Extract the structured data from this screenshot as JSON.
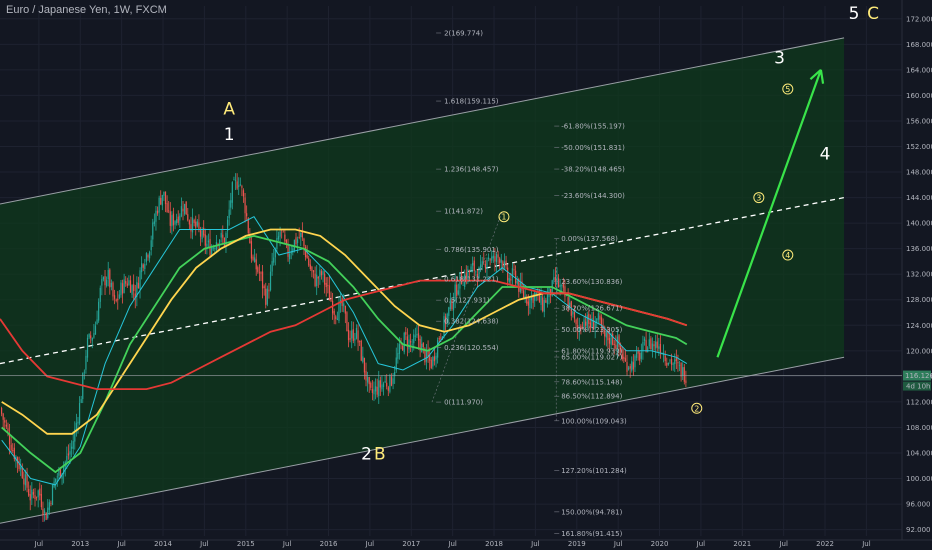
{
  "title": "Euro / Japanese Yen, 1W, FXCM",
  "colors": {
    "background": "#131722",
    "up": "#26a69a",
    "down": "#ef5350",
    "channel_fill": "#0f3a1c",
    "channel_line": "#9aa0a6",
    "midline": "#ffffff",
    "ma_cyan": "#26c6da",
    "ma_green": "#43d15a",
    "ma_yellow": "#ffd54f",
    "ma_red": "#e53935",
    "arrow": "#39e34a",
    "wave_white": "#ffffff",
    "wave_yellow": "#ffeb7a",
    "fib_text": "#b2b5be"
  },
  "price_labels": {
    "current": "116.126",
    "countdown": "4d 10h"
  },
  "chart_data": {
    "type": "candlestick",
    "symbol": "EURJPY",
    "timeframe": "1W",
    "x_ticks": [
      "Jul",
      "2013",
      "Jul",
      "2014",
      "Jul",
      "2015",
      "Jul",
      "2016",
      "Jul",
      "2017",
      "Jul",
      "2018",
      "Jul",
      "2019",
      "Jul",
      "2020",
      "Jul",
      "2021",
      "Jul",
      "2022",
      "Jul"
    ],
    "x_tick_dates": [
      2012.5,
      2013.0,
      2013.5,
      2014.0,
      2014.5,
      2015.0,
      2015.5,
      2016.0,
      2016.5,
      2017.0,
      2017.5,
      2018.0,
      2018.5,
      2019.0,
      2019.5,
      2020.0,
      2020.5,
      2021.0,
      2021.5,
      2022.0,
      2022.5
    ],
    "y_ticks": [
      "172.000",
      "168.000",
      "164.000",
      "160.000",
      "156.000",
      "152.000",
      "148.000",
      "144.000",
      "140.000",
      "136.000",
      "132.000",
      "128.000",
      "124.000",
      "120.000",
      "116.000",
      "112.000",
      "108.000",
      "104.000",
      "100.000",
      "96.000",
      "92.000"
    ],
    "ylim": [
      91,
      174
    ],
    "xlim": [
      2012.03,
      2022.93
    ],
    "price_path": [
      [
        2012.03,
        111
      ],
      [
        2012.1,
        108
      ],
      [
        2012.2,
        104
      ],
      [
        2012.3,
        101
      ],
      [
        2012.4,
        97
      ],
      [
        2012.5,
        98
      ],
      [
        2012.58,
        94
      ],
      [
        2012.7,
        100
      ],
      [
        2012.8,
        102
      ],
      [
        2012.9,
        105
      ],
      [
        2013.0,
        112
      ],
      [
        2013.08,
        121
      ],
      [
        2013.17,
        123
      ],
      [
        2013.25,
        130
      ],
      [
        2013.33,
        132
      ],
      [
        2013.42,
        127
      ],
      [
        2013.5,
        130
      ],
      [
        2013.58,
        131
      ],
      [
        2013.67,
        129
      ],
      [
        2013.75,
        134
      ],
      [
        2013.83,
        136
      ],
      [
        2013.92,
        142
      ],
      [
        2014.0,
        145
      ],
      [
        2014.08,
        140
      ],
      [
        2014.17,
        141
      ],
      [
        2014.25,
        143
      ],
      [
        2014.33,
        140
      ],
      [
        2014.42,
        139
      ],
      [
        2014.5,
        137
      ],
      [
        2014.58,
        136
      ],
      [
        2014.67,
        138
      ],
      [
        2014.75,
        137
      ],
      [
        2014.83,
        145
      ],
      [
        2014.92,
        147
      ],
      [
        2015.0,
        142
      ],
      [
        2015.08,
        134
      ],
      [
        2015.17,
        132
      ],
      [
        2015.25,
        128
      ],
      [
        2015.33,
        134
      ],
      [
        2015.42,
        139
      ],
      [
        2015.5,
        135
      ],
      [
        2015.58,
        137
      ],
      [
        2015.67,
        138
      ],
      [
        2015.75,
        134
      ],
      [
        2015.83,
        131
      ],
      [
        2015.92,
        132
      ],
      [
        2016.0,
        129
      ],
      [
        2016.08,
        126
      ],
      [
        2016.17,
        127
      ],
      [
        2016.25,
        122
      ],
      [
        2016.33,
        123
      ],
      [
        2016.42,
        118
      ],
      [
        2016.5,
        113
      ],
      [
        2016.58,
        114
      ],
      [
        2016.67,
        115
      ],
      [
        2016.75,
        115
      ],
      [
        2016.83,
        119
      ],
      [
        2016.92,
        122
      ],
      [
        2017.0,
        121
      ],
      [
        2017.08,
        122
      ],
      [
        2017.17,
        119
      ],
      [
        2017.25,
        118
      ],
      [
        2017.33,
        122
      ],
      [
        2017.42,
        125
      ],
      [
        2017.5,
        128
      ],
      [
        2017.58,
        131
      ],
      [
        2017.67,
        132
      ],
      [
        2017.75,
        133
      ],
      [
        2017.83,
        132
      ],
      [
        2017.92,
        135
      ],
      [
        2018.0,
        134
      ],
      [
        2018.08,
        135
      ],
      [
        2018.17,
        131
      ],
      [
        2018.25,
        132
      ],
      [
        2018.33,
        129
      ],
      [
        2018.42,
        128
      ],
      [
        2018.5,
        129
      ],
      [
        2018.58,
        127
      ],
      [
        2018.67,
        129
      ],
      [
        2018.75,
        131
      ],
      [
        2018.83,
        129
      ],
      [
        2018.92,
        127
      ],
      [
        2019.0,
        123
      ],
      [
        2019.08,
        125
      ],
      [
        2019.17,
        124
      ],
      [
        2019.25,
        125
      ],
      [
        2019.33,
        122
      ],
      [
        2019.42,
        122
      ],
      [
        2019.5,
        121
      ],
      [
        2019.58,
        118
      ],
      [
        2019.67,
        118
      ],
      [
        2019.75,
        119
      ],
      [
        2019.83,
        121
      ],
      [
        2019.92,
        121
      ],
      [
        2020.0,
        121
      ],
      [
        2020.08,
        119
      ],
      [
        2020.17,
        118
      ],
      [
        2020.25,
        117
      ],
      [
        2020.33,
        116.1
      ]
    ],
    "moving_averages": [
      {
        "name": "cyan",
        "color": "#26c6da",
        "points": [
          [
            2012.05,
            106
          ],
          [
            2012.4,
            100
          ],
          [
            2012.7,
            99
          ],
          [
            2013.0,
            105
          ],
          [
            2013.3,
            118
          ],
          [
            2013.6,
            127
          ],
          [
            2013.9,
            133
          ],
          [
            2014.2,
            139
          ],
          [
            2014.5,
            139
          ],
          [
            2014.8,
            139
          ],
          [
            2015.1,
            141
          ],
          [
            2015.4,
            135
          ],
          [
            2015.7,
            136
          ],
          [
            2016.0,
            132
          ],
          [
            2016.3,
            126
          ],
          [
            2016.6,
            118
          ],
          [
            2016.9,
            117
          ],
          [
            2017.2,
            119
          ],
          [
            2017.5,
            124
          ],
          [
            2017.8,
            130
          ],
          [
            2018.1,
            133
          ],
          [
            2018.4,
            130
          ],
          [
            2018.7,
            129
          ],
          [
            2019.0,
            126
          ],
          [
            2019.3,
            124
          ],
          [
            2019.6,
            120
          ],
          [
            2019.9,
            120
          ],
          [
            2020.2,
            119
          ],
          [
            2020.33,
            118
          ]
        ]
      },
      {
        "name": "green",
        "color": "#43d15a",
        "points": [
          [
            2012.05,
            108
          ],
          [
            2012.4,
            104
          ],
          [
            2012.7,
            101
          ],
          [
            2013.0,
            104
          ],
          [
            2013.3,
            112
          ],
          [
            2013.6,
            121
          ],
          [
            2013.9,
            127
          ],
          [
            2014.2,
            133
          ],
          [
            2014.5,
            136
          ],
          [
            2014.8,
            137
          ],
          [
            2015.1,
            138
          ],
          [
            2015.4,
            137
          ],
          [
            2015.7,
            136
          ],
          [
            2016.0,
            134
          ],
          [
            2016.3,
            130
          ],
          [
            2016.6,
            125
          ],
          [
            2016.9,
            121
          ],
          [
            2017.2,
            120
          ],
          [
            2017.5,
            122
          ],
          [
            2017.8,
            126
          ],
          [
            2018.1,
            130
          ],
          [
            2018.4,
            130
          ],
          [
            2018.7,
            130
          ],
          [
            2019.0,
            128
          ],
          [
            2019.3,
            126
          ],
          [
            2019.6,
            124
          ],
          [
            2019.9,
            123
          ],
          [
            2020.2,
            122
          ],
          [
            2020.33,
            121
          ]
        ]
      },
      {
        "name": "yellow",
        "color": "#ffd54f",
        "points": [
          [
            2012.05,
            112
          ],
          [
            2012.3,
            110
          ],
          [
            2012.6,
            107
          ],
          [
            2012.9,
            107
          ],
          [
            2013.2,
            110
          ],
          [
            2013.5,
            116
          ],
          [
            2013.8,
            122
          ],
          [
            2014.1,
            128
          ],
          [
            2014.4,
            133
          ],
          [
            2014.7,
            136
          ],
          [
            2015.0,
            138
          ],
          [
            2015.3,
            139
          ],
          [
            2015.6,
            139
          ],
          [
            2015.9,
            138
          ],
          [
            2016.2,
            135
          ],
          [
            2016.5,
            131
          ],
          [
            2016.8,
            127
          ],
          [
            2017.1,
            124
          ],
          [
            2017.4,
            123
          ],
          [
            2017.7,
            124
          ],
          [
            2018.0,
            126
          ],
          [
            2018.3,
            128
          ],
          [
            2018.6,
            129
          ],
          [
            2018.9,
            129
          ],
          [
            2019.2,
            128
          ],
          [
            2019.5,
            127
          ],
          [
            2019.8,
            126
          ],
          [
            2020.1,
            125
          ],
          [
            2020.33,
            124
          ]
        ]
      },
      {
        "name": "red",
        "color": "#e53935",
        "points": [
          [
            2012.03,
            125
          ],
          [
            2012.3,
            120
          ],
          [
            2012.6,
            116
          ],
          [
            2012.9,
            115
          ],
          [
            2013.2,
            114
          ],
          [
            2013.5,
            114
          ],
          [
            2013.8,
            114
          ],
          [
            2014.1,
            115
          ],
          [
            2014.4,
            117
          ],
          [
            2014.7,
            119
          ],
          [
            2015.0,
            121
          ],
          [
            2015.3,
            123
          ],
          [
            2015.6,
            124
          ],
          [
            2015.9,
            126
          ],
          [
            2016.2,
            128
          ],
          [
            2016.5,
            129
          ],
          [
            2016.8,
            130
          ],
          [
            2017.1,
            131
          ],
          [
            2017.4,
            131
          ],
          [
            2017.7,
            131
          ],
          [
            2018.0,
            131
          ],
          [
            2018.3,
            130
          ],
          [
            2018.6,
            129
          ],
          [
            2018.9,
            129
          ],
          [
            2019.2,
            128
          ],
          [
            2019.5,
            127
          ],
          [
            2019.8,
            126
          ],
          [
            2020.1,
            125
          ],
          [
            2020.33,
            124
          ]
        ]
      }
    ],
    "channel": {
      "upper": [
        [
          2012.03,
          143
        ],
        [
          2022.23,
          169
        ]
      ],
      "lower": [
        [
          2012.03,
          93
        ],
        [
          2022.23,
          119
        ]
      ],
      "mid": [
        [
          2012.03,
          118
        ],
        [
          2022.23,
          144
        ]
      ]
    },
    "arrow": {
      "from": [
        2020.7,
        119
      ],
      "to": [
        2021.95,
        164
      ]
    },
    "wave_labels": [
      {
        "text": "A",
        "x": 2014.8,
        "y": 157,
        "color": "yellow"
      },
      {
        "text": "1",
        "x": 2014.8,
        "y": 153,
        "color": "white"
      },
      {
        "text": "2",
        "x": 2016.46,
        "y": 103,
        "color": "white"
      },
      {
        "text": "B",
        "x": 2016.62,
        "y": 103,
        "color": "yellow"
      },
      {
        "text": "3",
        "x": 2021.45,
        "y": 165,
        "color": "white"
      },
      {
        "text": "4",
        "x": 2022.0,
        "y": 150,
        "color": "white"
      },
      {
        "text": "5",
        "x": 2022.35,
        "y": 172,
        "color": "white"
      },
      {
        "text": "C",
        "x": 2022.58,
        "y": 172,
        "color": "yellow"
      }
    ],
    "circled_labels": [
      {
        "text": "1",
        "x": 2018.12,
        "y": 141
      },
      {
        "text": "2",
        "x": 2020.45,
        "y": 111
      },
      {
        "text": "3",
        "x": 2021.2,
        "y": 144
      },
      {
        "text": "4",
        "x": 2021.55,
        "y": 135
      },
      {
        "text": "5",
        "x": 2021.55,
        "y": 161
      }
    ],
    "fib_left": [
      "2(169.774)",
      "1.618(159.115)",
      "1.236(148.457)",
      "1(141.872)",
      "0.786(135.901)",
      "0.618(131.221)",
      "0.5(127.931)",
      "0.382(124.638)",
      "0.236(120.554)",
      "0(111.970)"
    ],
    "fib_left_prices": [
      169.774,
      159.115,
      148.457,
      141.872,
      135.901,
      131.221,
      127.931,
      124.638,
      120.554,
      111.97
    ],
    "fib_right": [
      "-61.80%(155.197)",
      "-50.00%(151.831)",
      "-38.20%(148.465)",
      "-23.60%(144.300)",
      "0.00%(137.568)",
      "23.60%(130.836)",
      "38.20%(126.671)",
      "50.00%(123.305)",
      "61.80%(119.939)",
      "65.00%(119.027)",
      "78.60%(115.148)",
      "86.50%(112.894)",
      "100.00%(109.043)",
      "127.20%(101.284)",
      "150.00%(94.781)",
      "161.80%(91.415)"
    ],
    "fib_right_prices": [
      155.197,
      151.831,
      148.465,
      144.3,
      137.568,
      130.836,
      126.671,
      123.305,
      119.939,
      119.027,
      115.148,
      112.894,
      109.043,
      101.284,
      94.781,
      91.415
    ]
  }
}
